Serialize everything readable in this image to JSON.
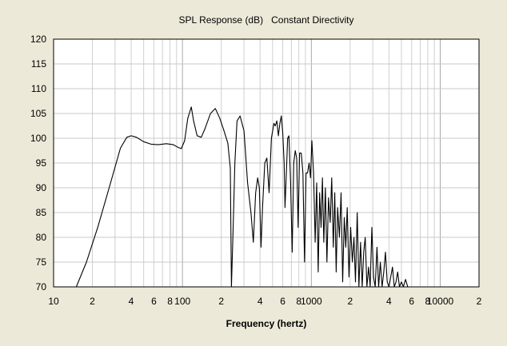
{
  "chart_data": {
    "type": "line",
    "title": "SPL Response (dB)   Constant Directivity",
    "xlabel": "Frequency (hertz)",
    "ylabel": "",
    "x_scale": "log",
    "xlim": [
      10,
      20000
    ],
    "ylim": [
      70,
      120
    ],
    "grid": true,
    "legend": "none",
    "x_tick_labels": [
      {
        "value": 10,
        "label": "10"
      },
      {
        "value": 20,
        "label": "2"
      },
      {
        "value": 40,
        "label": "4"
      },
      {
        "value": 60,
        "label": "6"
      },
      {
        "value": 80,
        "label": "8"
      },
      {
        "value": 100,
        "label": "100"
      },
      {
        "value": 200,
        "label": "2"
      },
      {
        "value": 400,
        "label": "4"
      },
      {
        "value": 600,
        "label": "6"
      },
      {
        "value": 800,
        "label": "8"
      },
      {
        "value": 1000,
        "label": "1000"
      },
      {
        "value": 2000,
        "label": "2"
      },
      {
        "value": 4000,
        "label": "4"
      },
      {
        "value": 6000,
        "label": "6"
      },
      {
        "value": 8000,
        "label": "8"
      },
      {
        "value": 10000,
        "label": "10000"
      },
      {
        "value": 20000,
        "label": "2"
      }
    ],
    "y_tick_labels": [
      "120",
      "115",
      "110",
      "105",
      "100",
      "95",
      "90",
      "85",
      "80",
      "75",
      "70"
    ],
    "series": [
      {
        "color": "#000000",
        "x": [
          15,
          18,
          22,
          27,
          33,
          37,
          40,
          44,
          50,
          57,
          65,
          75,
          85,
          92,
          98,
          104,
          110,
          117,
          122,
          130,
          140,
          150,
          165,
          180,
          195,
          210,
          225,
          235,
          240,
          247,
          255,
          265,
          280,
          300,
          320,
          340,
          355,
          370,
          383,
          395,
          407,
          418,
          435,
          452,
          470,
          490,
          512,
          525,
          540,
          555,
          570,
          585,
          600,
          615,
          625,
          640,
          655,
          670,
          690,
          710,
          730,
          750,
          770,
          790,
          810,
          835,
          860,
          885,
          910,
          935,
          960,
          985,
          1010,
          1040,
          1070,
          1100,
          1130,
          1160,
          1190,
          1220,
          1250,
          1285,
          1320,
          1360,
          1400,
          1440,
          1480,
          1520,
          1560,
          1600,
          1650,
          1700,
          1750,
          1800,
          1850,
          1900,
          1960,
          2020,
          2080,
          2140,
          2200,
          2270,
          2340,
          2410,
          2480,
          2550,
          2620,
          2700,
          2780,
          2860,
          2950,
          3040,
          3130,
          3230,
          3330,
          3430,
          3540,
          3650,
          3760,
          3880,
          4000,
          4130,
          4260,
          4400,
          4540,
          4680,
          4830,
          5000,
          5180,
          5380,
          5600,
          6000
        ],
        "y": [
          70,
          75,
          82,
          90,
          98,
          100.2,
          100.5,
          100.2,
          99.3,
          98.8,
          98.7,
          98.9,
          98.7,
          98.2,
          97.9,
          99.5,
          104,
          106.3,
          103.5,
          100.5,
          100.2,
          102,
          105,
          106,
          104,
          101.5,
          99,
          94,
          70,
          81,
          95,
          103.5,
          104.5,
          101.5,
          91,
          85,
          79,
          89,
          92,
          90,
          78,
          86,
          95,
          96,
          89,
          100,
          103,
          102.5,
          103.5,
          100.5,
          103,
          104.5,
          101,
          95,
          86,
          93,
          100,
          100.5,
          91,
          77,
          95,
          97.5,
          96,
          82,
          97,
          97,
          93,
          75,
          93,
          93,
          95,
          92,
          99.5,
          93,
          79,
          91,
          73,
          89,
          82,
          92,
          79,
          90,
          75,
          88,
          83,
          92,
          78,
          89,
          73,
          86,
          80,
          89,
          71,
          84,
          78,
          86,
          72,
          82,
          75,
          80,
          71,
          85,
          70,
          79,
          70,
          77,
          80,
          70,
          74,
          70,
          82,
          72,
          70,
          78,
          70,
          75,
          70,
          73,
          77,
          71,
          70,
          72,
          74,
          70,
          71,
          73,
          70,
          71,
          70,
          71.5,
          70,
          70
        ]
      }
    ]
  }
}
